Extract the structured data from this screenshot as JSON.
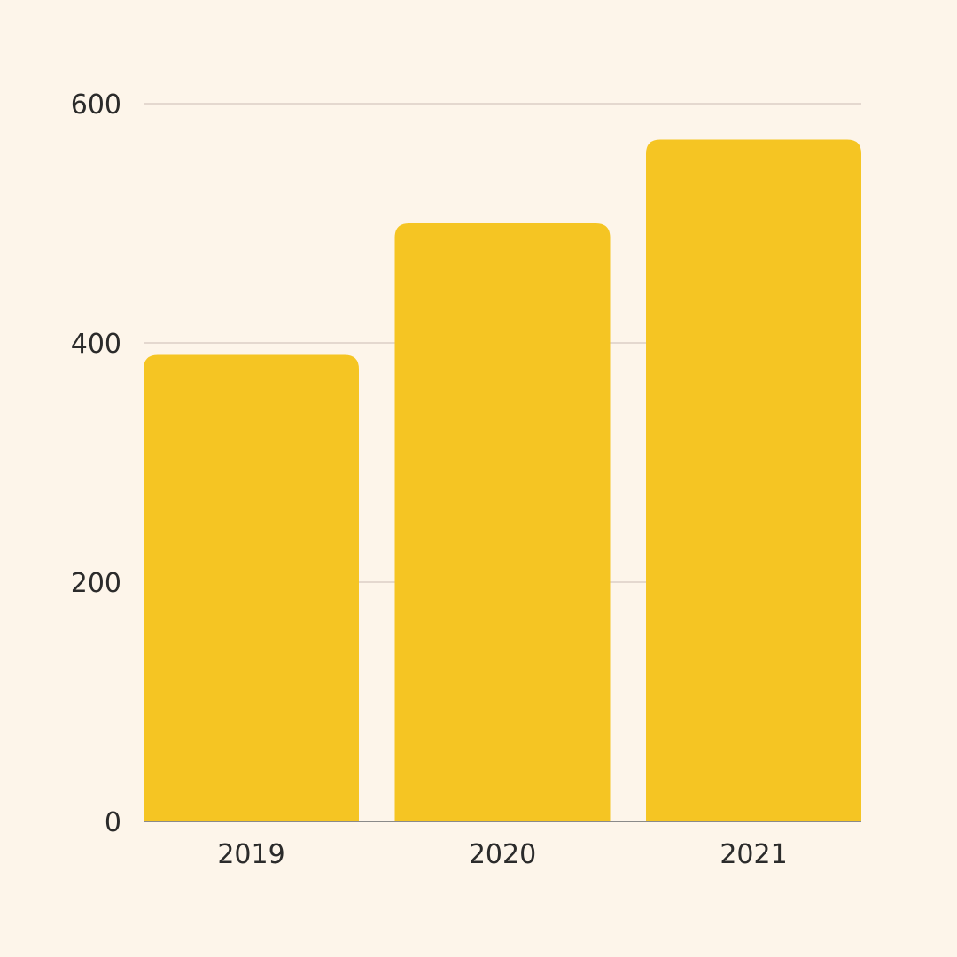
{
  "chart_data": {
    "type": "bar",
    "categories": [
      "2019",
      "2020",
      "2021"
    ],
    "values": [
      390,
      500,
      570
    ],
    "ylim": [
      0,
      600
    ],
    "yticks": [
      "0",
      "200",
      "400",
      "600"
    ],
    "grid": true,
    "legend": "none",
    "colors": {
      "background": "#fdf5ea",
      "bar": "#f5c523",
      "grid": "#cbbcb4",
      "baseline": "#8a8a8a",
      "text": "#2b2b2b"
    }
  }
}
